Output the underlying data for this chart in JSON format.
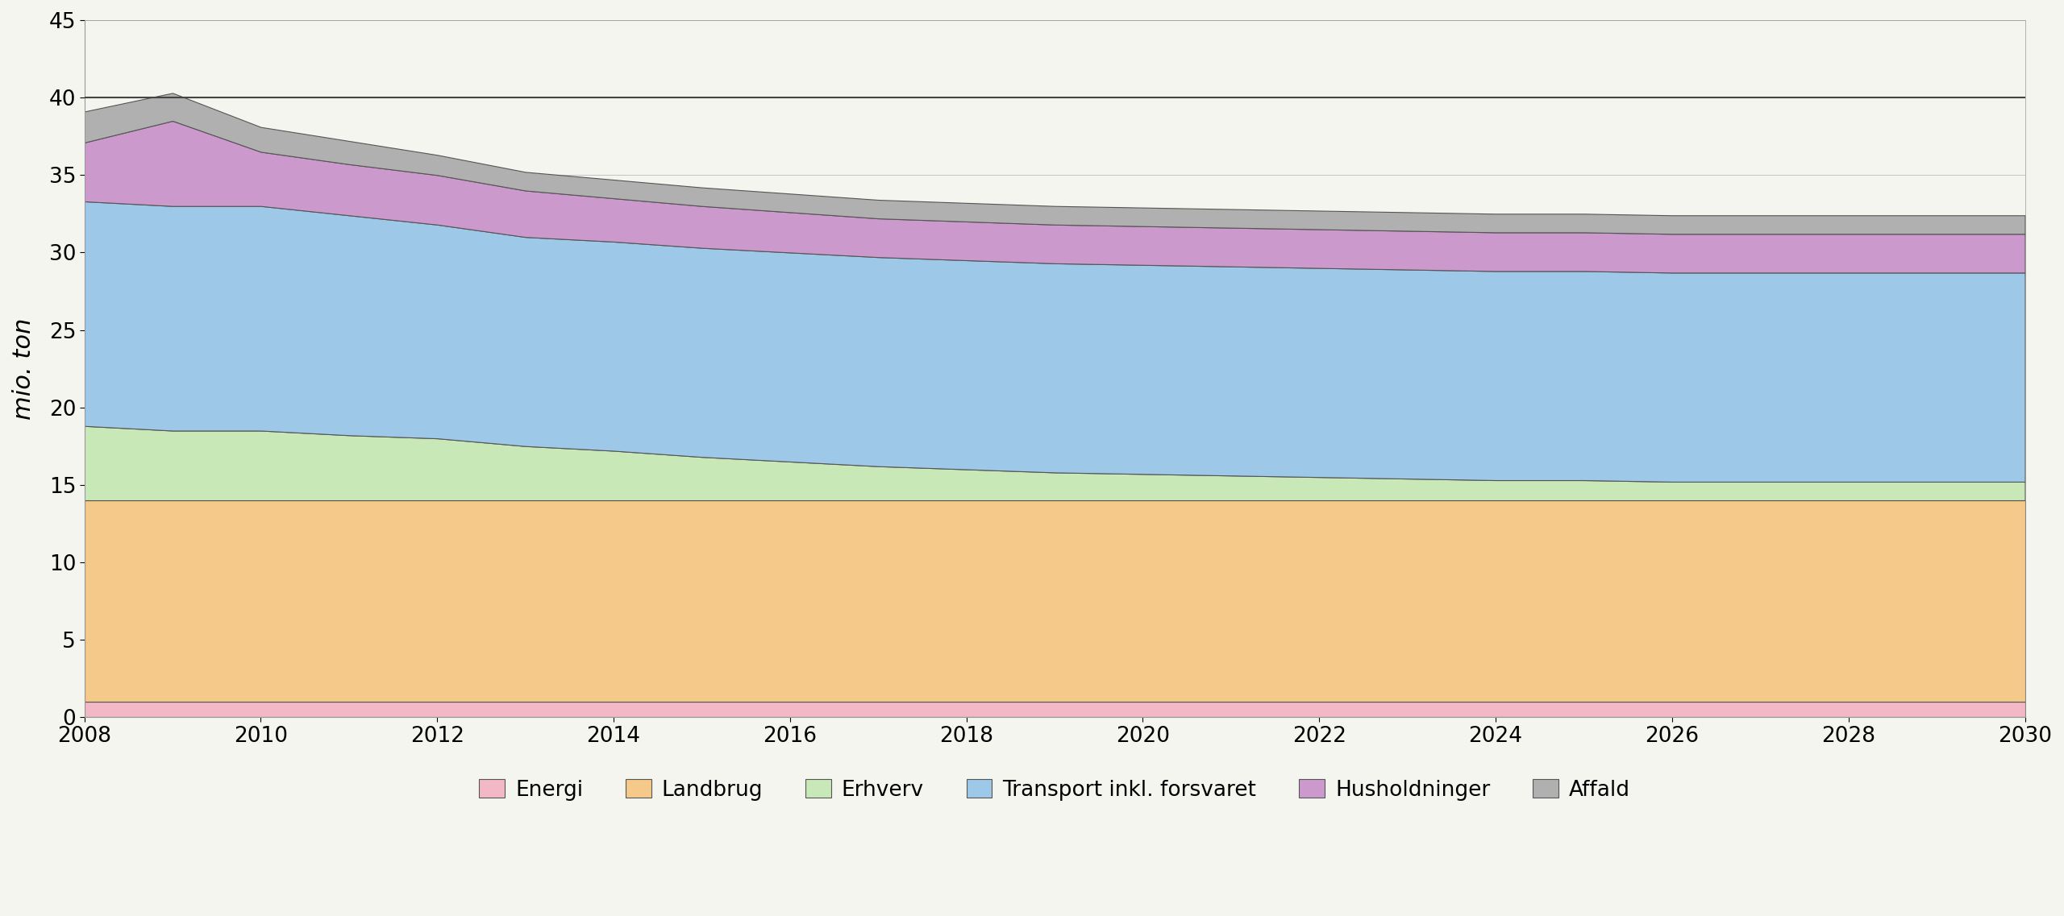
{
  "years": [
    2008,
    2009,
    2010,
    2011,
    2012,
    2013,
    2014,
    2015,
    2016,
    2017,
    2018,
    2019,
    2020,
    2021,
    2022,
    2023,
    2024,
    2025,
    2026,
    2027,
    2028,
    2029,
    2030
  ],
  "energi": [
    1.0,
    1.0,
    1.0,
    1.0,
    1.0,
    1.0,
    1.0,
    1.0,
    1.0,
    1.0,
    1.0,
    1.0,
    1.0,
    1.0,
    1.0,
    1.0,
    1.0,
    1.0,
    1.0,
    1.0,
    1.0,
    1.0,
    1.0
  ],
  "landbrug": [
    13.0,
    13.0,
    13.0,
    13.0,
    13.0,
    13.0,
    13.0,
    13.0,
    13.0,
    13.0,
    13.0,
    13.0,
    13.0,
    13.0,
    13.0,
    13.0,
    13.0,
    13.0,
    13.0,
    13.0,
    13.0,
    13.0,
    13.0
  ],
  "erhverv": [
    4.8,
    4.5,
    4.5,
    4.2,
    4.0,
    3.5,
    3.2,
    2.8,
    2.5,
    2.2,
    2.0,
    1.8,
    1.7,
    1.6,
    1.5,
    1.4,
    1.3,
    1.3,
    1.2,
    1.2,
    1.2,
    1.2,
    1.2
  ],
  "transport": [
    14.5,
    14.5,
    14.5,
    14.2,
    13.8,
    13.5,
    13.5,
    13.5,
    13.5,
    13.5,
    13.5,
    13.5,
    13.5,
    13.5,
    13.5,
    13.5,
    13.5,
    13.5,
    13.5,
    13.5,
    13.5,
    13.5,
    13.5
  ],
  "husholdninger": [
    3.8,
    5.5,
    3.5,
    3.3,
    3.2,
    3.0,
    2.8,
    2.7,
    2.6,
    2.5,
    2.5,
    2.5,
    2.5,
    2.5,
    2.5,
    2.5,
    2.5,
    2.5,
    2.5,
    2.5,
    2.5,
    2.5,
    2.5
  ],
  "affald": [
    2.0,
    1.8,
    1.6,
    1.5,
    1.3,
    1.2,
    1.2,
    1.2,
    1.2,
    1.2,
    1.2,
    1.2,
    1.2,
    1.2,
    1.2,
    1.2,
    1.2,
    1.2,
    1.2,
    1.2,
    1.2,
    1.2,
    1.2
  ],
  "colors": {
    "energi": "#f2b8c6",
    "landbrug": "#f5c98a",
    "erhverv": "#c8e8b8",
    "transport": "#9ec8e8",
    "husholdninger": "#cc99cc",
    "affald": "#b0b0b0"
  },
  "ylim": [
    0,
    45
  ],
  "yticks": [
    0,
    5,
    10,
    15,
    20,
    25,
    30,
    35,
    40,
    45
  ],
  "ylabel": "mio. ton",
  "hline_y": 40,
  "legend_labels": [
    "Energi",
    "Landbrug",
    "Erhverv",
    "Transport inkl. forsvaret",
    "Husholdninger",
    "Affald"
  ],
  "bg_color": "#f5f5f0",
  "plot_bg_color": "#f5f5f0",
  "xtick_labels": [
    "2008",
    "2010",
    "2012",
    "2014",
    "2016",
    "2018",
    "2020",
    "2022",
    "2024",
    "2026",
    "2028",
    "2030"
  ],
  "edge_color": "#555555"
}
